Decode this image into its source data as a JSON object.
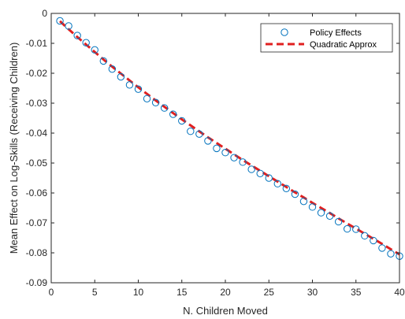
{
  "chart_data": {
    "type": "scatter",
    "title": "",
    "xlabel": "N. Children Moved",
    "ylabel": "Mean Effect on Log-Skills (Receiving Children)",
    "xlim": [
      0,
      40
    ],
    "ylim": [
      -0.09,
      0
    ],
    "xticks": [
      0,
      5,
      10,
      15,
      20,
      25,
      30,
      35,
      40
    ],
    "xtick_labels": [
      "0",
      "5",
      "10",
      "15",
      "20",
      "25",
      "30",
      "35",
      "40"
    ],
    "yticks": [
      0,
      -0.01,
      -0.02,
      -0.03,
      -0.04,
      -0.05,
      -0.06,
      -0.07,
      -0.08,
      -0.09
    ],
    "ytick_labels": [
      "0",
      "-0.01",
      "-0.02",
      "-0.03",
      "-0.04",
      "-0.05",
      "-0.06",
      "-0.07",
      "-0.08",
      "-0.09"
    ],
    "grid": false,
    "legend": "top-right",
    "series": [
      {
        "name": "Policy Effects",
        "type": "scatter",
        "marker": "open-circle",
        "color": "#0072BD",
        "x": [
          1,
          2,
          3,
          4,
          5,
          6,
          7,
          8,
          9,
          10,
          11,
          12,
          13,
          14,
          15,
          16,
          17,
          18,
          19,
          20,
          21,
          22,
          23,
          24,
          25,
          26,
          27,
          28,
          29,
          30,
          31,
          32,
          33,
          34,
          35,
          36,
          37,
          38,
          39,
          40
        ],
        "y": [
          -0.0025,
          -0.0042,
          -0.0074,
          -0.0098,
          -0.0122,
          -0.0159,
          -0.0186,
          -0.0212,
          -0.0239,
          -0.0253,
          -0.0285,
          -0.0298,
          -0.0316,
          -0.0337,
          -0.0359,
          -0.0394,
          -0.0403,
          -0.0426,
          -0.0451,
          -0.0465,
          -0.0482,
          -0.0497,
          -0.0521,
          -0.0535,
          -0.055,
          -0.0569,
          -0.0585,
          -0.0604,
          -0.0628,
          -0.0647,
          -0.0666,
          -0.0677,
          -0.0696,
          -0.072,
          -0.0721,
          -0.0743,
          -0.0759,
          -0.0784,
          -0.0803,
          -0.0811
        ]
      },
      {
        "name": "Quadratic Approx",
        "type": "line",
        "style": "dashed",
        "color": "#E02020",
        "x": [
          1,
          2,
          3,
          4,
          5,
          6,
          7,
          8,
          9,
          10,
          11,
          12,
          13,
          14,
          15,
          16,
          17,
          18,
          19,
          20,
          21,
          22,
          23,
          24,
          25,
          26,
          27,
          28,
          29,
          30,
          31,
          32,
          33,
          34,
          35,
          36,
          37,
          38,
          39,
          40
        ],
        "y": [
          -0.0026,
          -0.0053,
          -0.0079,
          -0.0104,
          -0.0129,
          -0.0154,
          -0.0178,
          -0.0201,
          -0.0224,
          -0.0247,
          -0.0269,
          -0.0291,
          -0.0312,
          -0.0333,
          -0.0354,
          -0.0374,
          -0.0394,
          -0.0414,
          -0.0433,
          -0.0452,
          -0.0471,
          -0.049,
          -0.0508,
          -0.0526,
          -0.0544,
          -0.0562,
          -0.058,
          -0.0598,
          -0.0615,
          -0.0633,
          -0.065,
          -0.0667,
          -0.0685,
          -0.0702,
          -0.0719,
          -0.0736,
          -0.0753,
          -0.077,
          -0.0788,
          -0.0805
        ]
      }
    ]
  }
}
